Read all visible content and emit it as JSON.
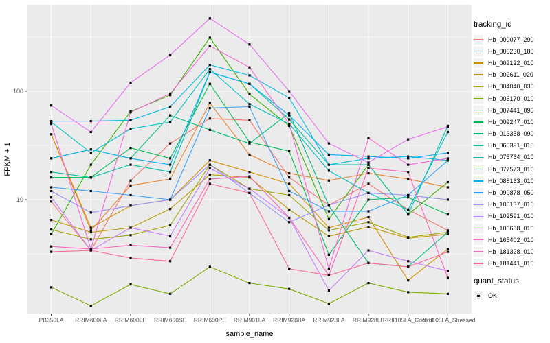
{
  "figure": {
    "y_axis": {
      "title": "FPKM + 1",
      "tick_labels": [
        "100",
        "10"
      ],
      "tick_values": [
        100,
        10
      ]
    },
    "x_axis": {
      "title": "sample_name"
    },
    "legend": {
      "tracking_title": "tracking_id",
      "quant_title": "quant_status",
      "quant_items": [
        {
          "label": "OK"
        }
      ]
    },
    "colors": {
      "panel_bg": "#EBEBEB",
      "grid": "#FFFFFF",
      "tick_text": "#4D4D4D",
      "tick_mark": "#333333",
      "point": "#000000",
      "legend_key_bg": "#F2F2F2"
    }
  },
  "chart_data": {
    "type": "line",
    "title": "",
    "xlabel": "sample_name",
    "ylabel": "FPKM + 1",
    "y_scale": "log10",
    "ylim": [
      0.89,
      620
    ],
    "y_breaks": [
      10,
      100
    ],
    "y_minor_breaks": [
      3.162,
      31.62,
      316.2
    ],
    "grid": true,
    "legend_position": "right",
    "point_shape": "filled-square",
    "quant_status_all": "OK",
    "x_categories": [
      "PB350LA",
      "RRIM600LA",
      "RRIM600LE",
      "RRIM600SE",
      "RRIM600PE",
      "RRIM901LA",
      "RRIM928BA",
      "RRIM928LA",
      "RRIM928LE",
      "RRII105LA_Control",
      "RRII105LA_Stressed"
    ],
    "series": [
      {
        "name": "Hb_000077_290",
        "color": "#F8766D",
        "values": [
          9.6,
          3.4,
          15,
          33,
          56,
          54,
          16,
          8.9,
          14,
          8.1,
          5.2
        ]
      },
      {
        "name": "Hb_000230_180",
        "color": "#EA8331",
        "values": [
          40,
          5.2,
          13.5,
          15.5,
          78,
          26,
          17.5,
          15,
          17.5,
          15.5,
          13
        ]
      },
      {
        "name": "Hb_002122_010",
        "color": "#D89000",
        "values": [
          40,
          5.5,
          8.8,
          10,
          23,
          18,
          14,
          5.5,
          6.9,
          1.8,
          3.5
        ]
      },
      {
        "name": "Hb_002611_020",
        "color": "#C09B00",
        "values": [
          6.5,
          5.0,
          5.5,
          8.2,
          17,
          16,
          8.1,
          4.6,
          5.6,
          4.4,
          4.8
        ]
      },
      {
        "name": "Hb_004040_030",
        "color": "#A3A500",
        "values": [
          5.3,
          4.3,
          4.7,
          5.8,
          21,
          12.6,
          11,
          5.2,
          6.2,
          4.5,
          5.0
        ]
      },
      {
        "name": "Hb_005170_010",
        "color": "#7CAE00",
        "values": [
          1.55,
          1.05,
          1.65,
          1.35,
          2.4,
          1.7,
          1.5,
          1.1,
          1.7,
          1.4,
          1.35
        ]
      },
      {
        "name": "Hb_007441_090",
        "color": "#39B600",
        "values": [
          4.8,
          21,
          65,
          92,
          312,
          94,
          48,
          6.6,
          21,
          7.3,
          14.5
        ]
      },
      {
        "name": "Hb_009247_010",
        "color": "#00BB4E",
        "values": [
          16,
          16,
          30,
          24,
          117,
          34,
          28,
          3.1,
          10,
          10.5,
          7.3
        ]
      },
      {
        "name": "Hb_013358_090",
        "color": "#00BF7D",
        "values": [
          24,
          29,
          24,
          60,
          44,
          33,
          63,
          8.8,
          2.6,
          2.4,
          5.0
        ]
      },
      {
        "name": "Hb_060391_010",
        "color": "#00C1A3",
        "values": [
          18,
          16,
          21,
          18,
          150,
          117,
          55,
          21,
          21,
          7.3,
          48
        ]
      },
      {
        "name": "Hb_075764_010",
        "color": "#00BFC4",
        "values": [
          52,
          27,
          45,
          52,
          160,
          76,
          50,
          18.5,
          11.5,
          8.1,
          42
        ]
      },
      {
        "name": "Hb_077573_010",
        "color": "#00BAE0",
        "values": [
          53,
          53,
          54,
          72,
          175,
          140,
          87,
          21,
          24,
          25,
          23
        ]
      },
      {
        "name": "Hb_088163_010",
        "color": "#00B0F6",
        "values": [
          24,
          29,
          24,
          21,
          150,
          117,
          60,
          26,
          25,
          24,
          27
        ]
      },
      {
        "name": "Hb_099878_050",
        "color": "#35A2FF",
        "values": [
          13,
          12,
          11,
          10,
          70,
          72,
          12,
          7.8,
          7.8,
          11,
          23
        ]
      },
      {
        "name": "Hb_100137_010",
        "color": "#9590FF",
        "values": [
          12,
          7.6,
          8.8,
          10,
          21,
          11.5,
          6.2,
          8.9,
          11.5,
          11,
          10
        ]
      },
      {
        "name": "Hb_102591_010",
        "color": "#C77CFF",
        "values": [
          10.5,
          3.4,
          5.5,
          4.6,
          19.5,
          12.6,
          6.8,
          1.45,
          3.4,
          2.7,
          2.2
        ]
      },
      {
        "name": "Hb_106688_010",
        "color": "#E76BF3",
        "values": [
          74,
          42,
          120,
          216,
          470,
          270,
          100,
          33,
          22,
          36,
          47
        ]
      },
      {
        "name": "Hb_165402_010",
        "color": "#FA62DB",
        "values": [
          50,
          3.5,
          64,
          95,
          262,
          166,
          50,
          2.3,
          37,
          21,
          24
        ]
      },
      {
        "name": "Hb_181328_010",
        "color": "#FF62BC",
        "values": [
          3.7,
          3.5,
          3.8,
          3.6,
          15.5,
          16.4,
          6.8,
          2.0,
          19.5,
          18,
          1.9
        ]
      },
      {
        "name": "Hb_181441_010",
        "color": "#FF6A98",
        "values": [
          3.3,
          3.4,
          2.9,
          2.7,
          14,
          11.5,
          2.3,
          2.0,
          2.6,
          2.4,
          3.3
        ]
      }
    ]
  }
}
